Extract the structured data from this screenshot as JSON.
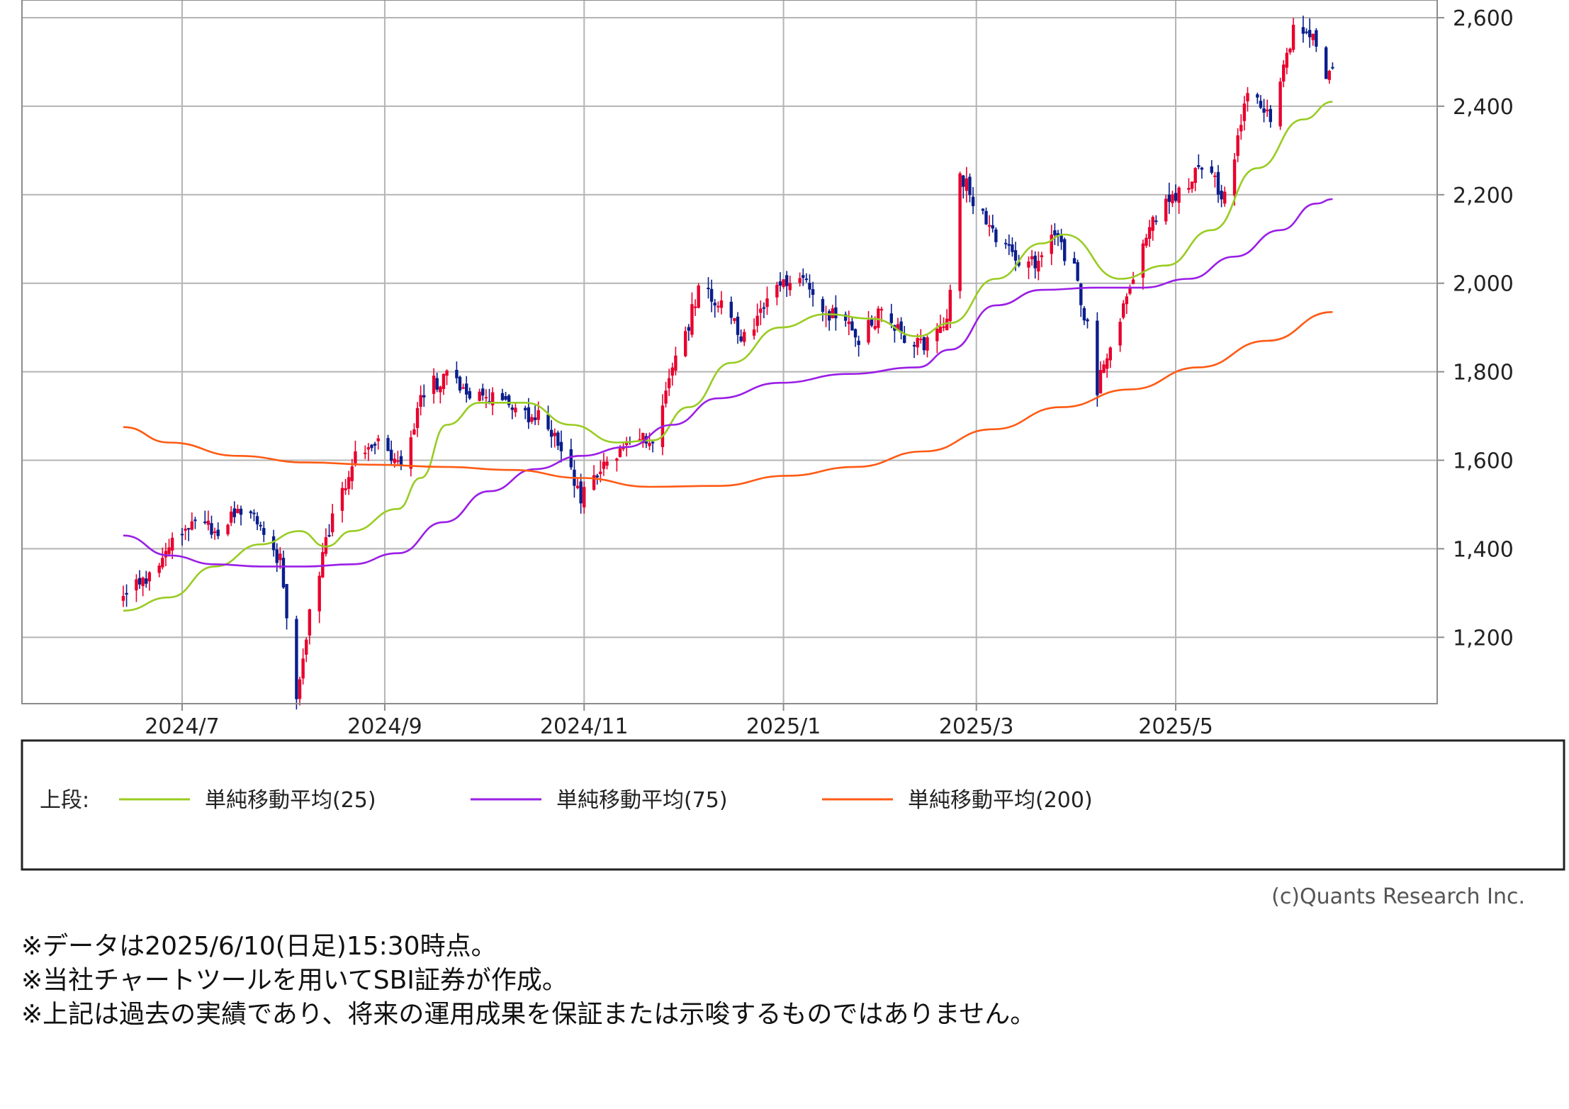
{
  "chart_data": {
    "type": "candlestick",
    "x_tick_labels": [
      "2024/7",
      "2024/9",
      "2024/11",
      "2025/1",
      "2025/3",
      "2025/5"
    ],
    "y_tick_labels": [
      "2,600",
      "2,400",
      "2,200",
      "2,000",
      "1,800",
      "1,600",
      "1,400",
      "1,200"
    ],
    "ylim": [
      1050,
      2640
    ],
    "y_ticks": [
      2600,
      2400,
      2200,
      2000,
      1800,
      1600,
      1400,
      1200
    ],
    "x_range": [
      "2024-05-13",
      "2025-07-20"
    ],
    "x_tick_dates": [
      "2024-07-01",
      "2024-09-01",
      "2024-11-01",
      "2025-01-01",
      "2025-03-01",
      "2025-05-01"
    ],
    "grid": true,
    "colors": {
      "up": "#e8002d",
      "down": "#0a1e8c",
      "ma25": "#99cc22",
      "ma75": "#9a1ee6",
      "ma200": "#ff5a14",
      "grid": "#b4b4b4"
    },
    "price_path": [
      [
        "2024-06-13",
        1290
      ],
      [
        "2024-06-20",
        1330
      ],
      [
        "2024-06-27",
        1400
      ],
      [
        "2024-07-04",
        1470
      ],
      [
        "2024-07-11",
        1440
      ],
      [
        "2024-07-18",
        1480
      ],
      [
        "2024-07-25",
        1450
      ],
      [
        "2024-07-31",
        1370
      ],
      [
        "2024-08-05",
        1080
      ],
      [
        "2024-08-09",
        1250
      ],
      [
        "2024-08-16",
        1480
      ],
      [
        "2024-08-23",
        1610
      ],
      [
        "2024-08-30",
        1640
      ],
      [
        "2024-09-06",
        1590
      ],
      [
        "2024-09-13",
        1760
      ],
      [
        "2024-09-20",
        1790
      ],
      [
        "2024-09-27",
        1740
      ],
      [
        "2024-10-04",
        1740
      ],
      [
        "2024-10-11",
        1710
      ],
      [
        "2024-10-18",
        1700
      ],
      [
        "2024-10-25",
        1640
      ],
      [
        "2024-10-31",
        1520
      ],
      [
        "2024-11-08",
        1600
      ],
      [
        "2024-11-15",
        1640
      ],
      [
        "2024-11-22",
        1650
      ],
      [
        "2024-11-29",
        1820
      ],
      [
        "2024-12-06",
        1980
      ],
      [
        "2024-12-13",
        1960
      ],
      [
        "2024-12-20",
        1870
      ],
      [
        "2024-12-27",
        1960
      ],
      [
        "2025-01-06",
        2020
      ],
      [
        "2025-01-15",
        1930
      ],
      [
        "2025-01-24",
        1880
      ],
      [
        "2025-01-31",
        1940
      ],
      [
        "2025-02-07",
        1870
      ],
      [
        "2025-02-14",
        1860
      ],
      [
        "2025-02-20",
        1900
      ],
      [
        "2025-02-24",
        2250
      ],
      [
        "2025-03-03",
        2150
      ],
      [
        "2025-03-10",
        2080
      ],
      [
        "2025-03-17",
        2030
      ],
      [
        "2025-03-24",
        2110
      ],
      [
        "2025-03-31",
        2040
      ],
      [
        "2025-04-04",
        1900
      ],
      [
        "2025-04-07",
        1760
      ],
      [
        "2025-04-10",
        1850
      ],
      [
        "2025-04-17",
        1990
      ],
      [
        "2025-04-25",
        2150
      ],
      [
        "2025-05-02",
        2200
      ],
      [
        "2025-05-09",
        2260
      ],
      [
        "2025-05-16",
        2200
      ],
      [
        "2025-05-23",
        2430
      ],
      [
        "2025-05-30",
        2380
      ],
      [
        "2025-06-06",
        2570
      ],
      [
        "2025-06-12",
        2550
      ],
      [
        "2025-06-16",
        2450
      ],
      [
        "2025-06-18",
        2500
      ]
    ],
    "series": [
      {
        "name": "単純移動平均(25)",
        "values": [
          [
            "2024-06-13",
            1260
          ],
          [
            "2024-06-27",
            1290
          ],
          [
            "2024-07-11",
            1360
          ],
          [
            "2024-07-25",
            1410
          ],
          [
            "2024-08-06",
            1440
          ],
          [
            "2024-08-14",
            1405
          ],
          [
            "2024-08-22",
            1440
          ],
          [
            "2024-09-05",
            1490
          ],
          [
            "2024-09-12",
            1560
          ],
          [
            "2024-09-20",
            1680
          ],
          [
            "2024-09-30",
            1730
          ],
          [
            "2024-10-14",
            1730
          ],
          [
            "2024-10-28",
            1680
          ],
          [
            "2024-11-11",
            1640
          ],
          [
            "2024-11-22",
            1645
          ],
          [
            "2024-12-03",
            1720
          ],
          [
            "2024-12-16",
            1820
          ],
          [
            "2024-12-31",
            1900
          ],
          [
            "2025-01-14",
            1930
          ],
          [
            "2025-01-28",
            1920
          ],
          [
            "2025-02-11",
            1880
          ],
          [
            "2025-02-21",
            1910
          ],
          [
            "2025-03-07",
            2010
          ],
          [
            "2025-03-21",
            2090
          ],
          [
            "2025-03-28",
            2110
          ],
          [
            "2025-04-14",
            2010
          ],
          [
            "2025-04-28",
            2040
          ],
          [
            "2025-05-12",
            2120
          ],
          [
            "2025-05-26",
            2260
          ],
          [
            "2025-06-09",
            2370
          ],
          [
            "2025-06-18",
            2410
          ]
        ]
      },
      {
        "name": "単純移動平均(75)",
        "values": [
          [
            "2024-06-13",
            1430
          ],
          [
            "2024-06-27",
            1385
          ],
          [
            "2024-07-11",
            1365
          ],
          [
            "2024-07-25",
            1360
          ],
          [
            "2024-08-08",
            1360
          ],
          [
            "2024-08-22",
            1365
          ],
          [
            "2024-09-05",
            1390
          ],
          [
            "2024-09-19",
            1460
          ],
          [
            "2024-10-03",
            1530
          ],
          [
            "2024-10-17",
            1580
          ],
          [
            "2024-10-31",
            1610
          ],
          [
            "2024-11-14",
            1630
          ],
          [
            "2024-11-28",
            1680
          ],
          [
            "2024-12-12",
            1740
          ],
          [
            "2024-12-31",
            1775
          ],
          [
            "2025-01-21",
            1795
          ],
          [
            "2025-02-11",
            1810
          ],
          [
            "2025-02-21",
            1850
          ],
          [
            "2025-03-07",
            1950
          ],
          [
            "2025-03-21",
            1985
          ],
          [
            "2025-04-07",
            1990
          ],
          [
            "2025-04-21",
            1990
          ],
          [
            "2025-05-05",
            2010
          ],
          [
            "2025-05-19",
            2060
          ],
          [
            "2025-06-02",
            2120
          ],
          [
            "2025-06-13",
            2180
          ],
          [
            "2025-06-18",
            2190
          ]
        ]
      },
      {
        "name": "単純移動平均(200)",
        "values": [
          [
            "2024-06-13",
            1675
          ],
          [
            "2024-06-27",
            1640
          ],
          [
            "2024-07-18",
            1610
          ],
          [
            "2024-08-08",
            1595
          ],
          [
            "2024-08-29",
            1590
          ],
          [
            "2024-09-19",
            1585
          ],
          [
            "2024-10-10",
            1578
          ],
          [
            "2024-10-31",
            1560
          ],
          [
            "2024-11-21",
            1540
          ],
          [
            "2024-12-12",
            1542
          ],
          [
            "2025-01-02",
            1565
          ],
          [
            "2025-01-23",
            1585
          ],
          [
            "2025-02-13",
            1620
          ],
          [
            "2025-03-06",
            1670
          ],
          [
            "2025-03-27",
            1720
          ],
          [
            "2025-04-17",
            1760
          ],
          [
            "2025-05-08",
            1810
          ],
          [
            "2025-05-29",
            1870
          ],
          [
            "2025-06-18",
            1935
          ]
        ]
      }
    ]
  },
  "legend": {
    "prefix": "上段:",
    "items": [
      {
        "label": "単純移動平均(25)"
      },
      {
        "label": "単純移動平均(75)"
      },
      {
        "label": "単純移動平均(200)"
      }
    ]
  },
  "copyright": "(c)Quants Research Inc.",
  "notes": [
    "※データは2025/6/10(日足)15:30時点。",
    "※当社チャートツールを用いてSBI証券が作成。",
    "※上記は過去の実績であり、将来の運用成果を保証または示唆するものではありません。"
  ]
}
